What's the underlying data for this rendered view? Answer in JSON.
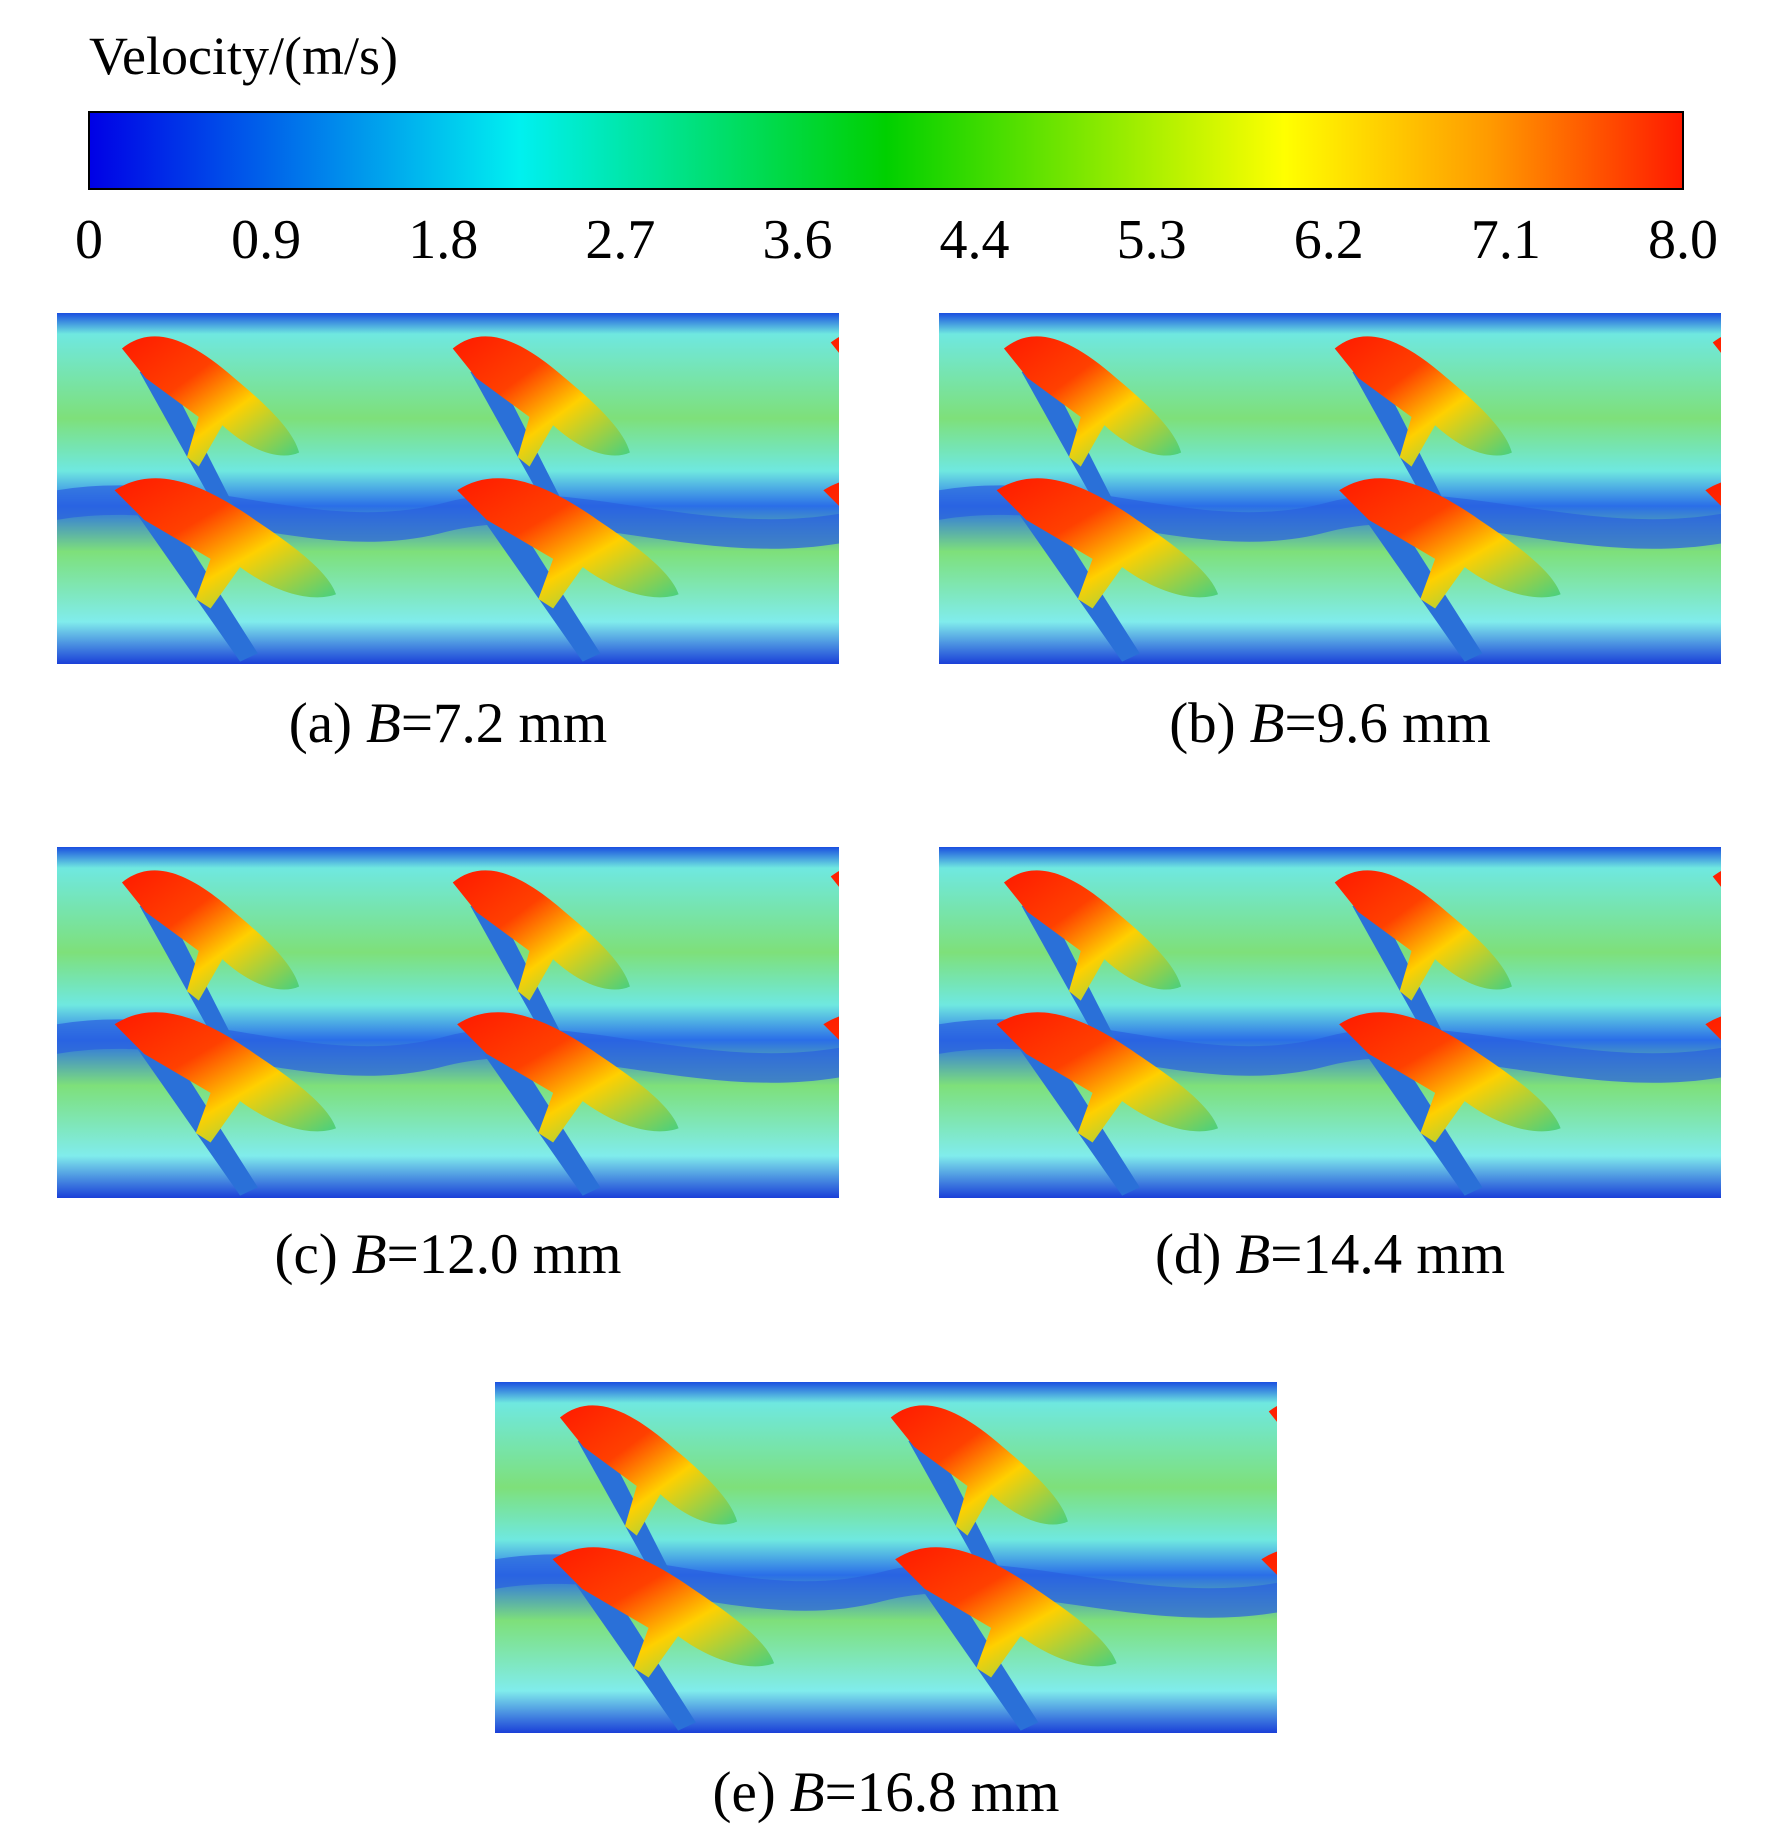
{
  "colorbar": {
    "title": "Velocity/(m/s)",
    "tick_labels": [
      "0",
      "0.9",
      "1.8",
      "2.7",
      "3.6",
      "4.4",
      "5.3",
      "6.2",
      "7.1",
      "8.0"
    ]
  },
  "panels": [
    {
      "label": "(a)",
      "variable": "B",
      "value": "=7.2 mm"
    },
    {
      "label": "(b)",
      "variable": "B",
      "value": "=9.6 mm"
    },
    {
      "label": "(c)",
      "variable": "B",
      "value": "=12.0 mm"
    },
    {
      "label": "(d)",
      "variable": "B",
      "value": "=14.4 mm"
    },
    {
      "label": "(e)",
      "variable": "B",
      "value": "=16.8 mm"
    }
  ]
}
